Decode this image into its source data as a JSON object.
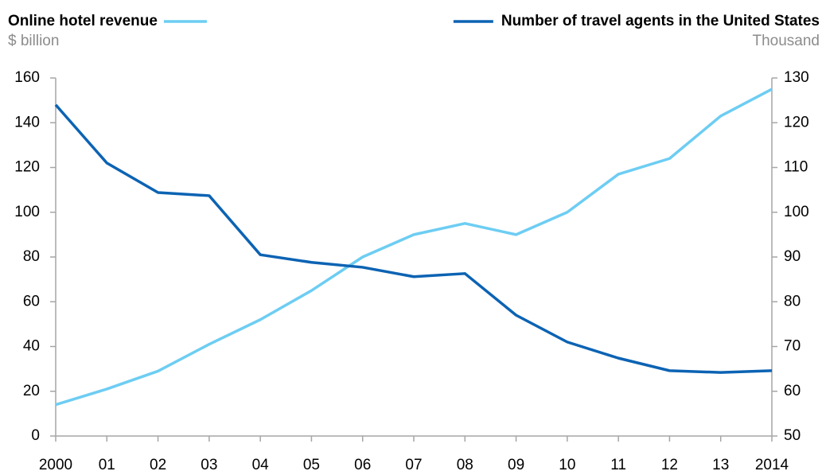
{
  "chart_data": {
    "type": "line",
    "y_label": "$ billion",
    "y2_label": "Thousand",
    "categories": [
      "2000",
      "01",
      "02",
      "03",
      "04",
      "05",
      "06",
      "07",
      "08",
      "09",
      "10",
      "11",
      "12",
      "13",
      "2014"
    ],
    "series": [
      {
        "name": "Online hotel revenue",
        "color": "#6dcdf3",
        "values": [
          14,
          21,
          29,
          41,
          52,
          65,
          80,
          90,
          95,
          90,
          100,
          117,
          124,
          143,
          155
        ]
      },
      {
        "name": "Number of travel agents in the United States",
        "color": "#0c63b3",
        "axis": "y2",
        "values": [
          124,
          111,
          104.4,
          103.7,
          90.5,
          88.8,
          87.7,
          85.6,
          86.3,
          77,
          71,
          67.4,
          64.6,
          64.2,
          64.6
        ]
      }
    ],
    "ylim": [
      0,
      160
    ],
    "yticks": [
      0,
      20,
      40,
      60,
      80,
      100,
      120,
      140,
      160
    ],
    "y2lim": [
      50,
      130
    ],
    "y2ticks": [
      50,
      60,
      70,
      80,
      90,
      100,
      110,
      120,
      130
    ]
  }
}
